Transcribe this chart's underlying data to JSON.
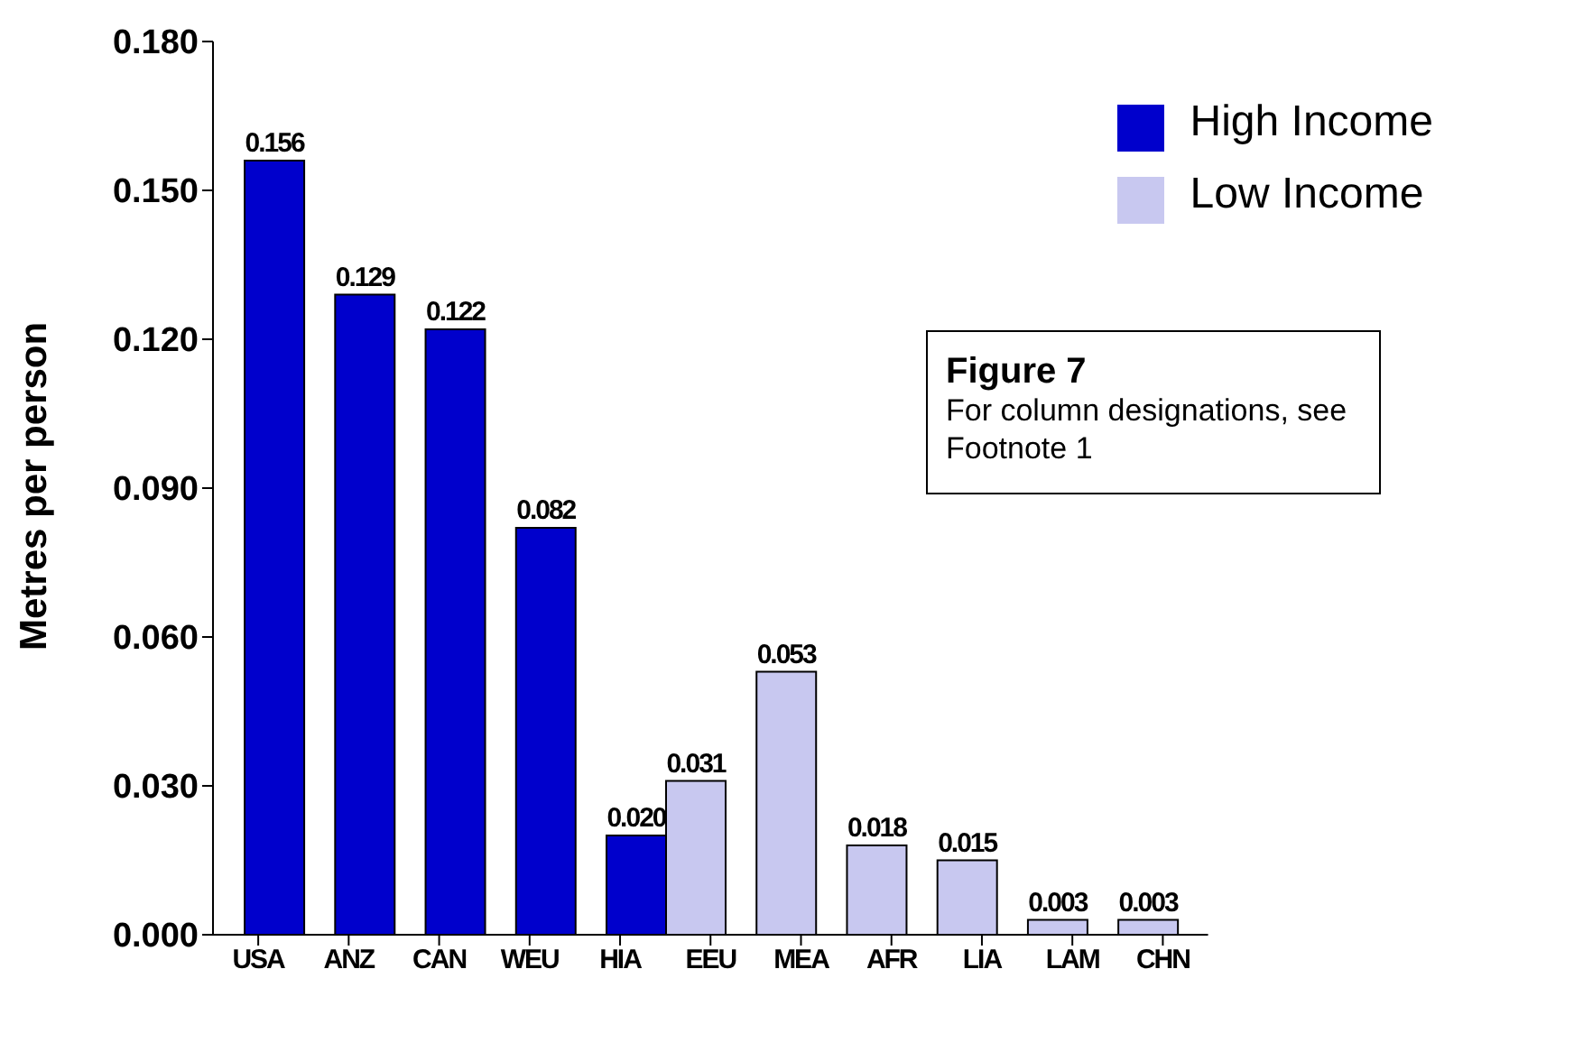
{
  "chart_data": {
    "type": "bar",
    "ylabel": "Metres per person",
    "categories": [
      "USA",
      "ANZ",
      "CAN",
      "WEU",
      "HIA",
      "EEU",
      "MEA",
      "AFR",
      "LIA",
      "LAM",
      "CHN"
    ],
    "series": [
      {
        "name": "High Income",
        "color": "#0000cc",
        "values": [
          0.156,
          0.129,
          0.122,
          0.082,
          0.02,
          null,
          null,
          null,
          null,
          null,
          null
        ],
        "value_labels": [
          "0.156",
          "0.129",
          "0.122",
          "0.082",
          "0.020",
          null,
          null,
          null,
          null,
          null,
          null
        ]
      },
      {
        "name": "Low Income",
        "color": "#c8c8f0",
        "values": [
          null,
          null,
          null,
          null,
          null,
          0.031,
          0.053,
          0.018,
          0.015,
          0.003,
          0.003
        ],
        "value_labels": [
          null,
          null,
          null,
          null,
          null,
          "0.031",
          "0.053",
          "0.018",
          "0.015",
          "0.003",
          "0.003"
        ]
      }
    ],
    "ylim": [
      0,
      0.18
    ],
    "yticks": [
      {
        "value": 0,
        "label": "0.000"
      },
      {
        "value": 0.03,
        "label": "0.030"
      },
      {
        "value": 0.06,
        "label": "0.060"
      },
      {
        "value": 0.09,
        "label": "0.090"
      },
      {
        "value": 0.12,
        "label": "0.120"
      },
      {
        "value": 0.15,
        "label": "0.150"
      },
      {
        "value": 0.18,
        "label": "0.180"
      }
    ],
    "grid": false,
    "legend": "top right",
    "annotations": [
      "Figure 7",
      "For column designations, see Footnote 1"
    ]
  }
}
